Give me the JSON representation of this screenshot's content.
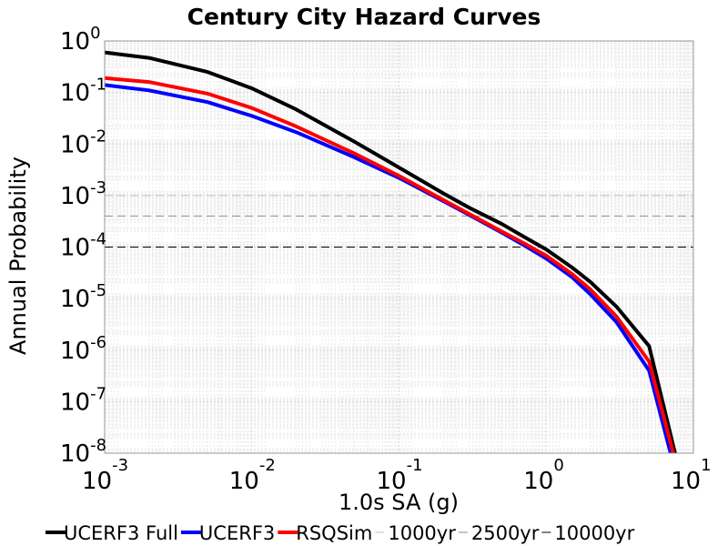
{
  "chart_data": {
    "type": "line",
    "title": "Century City Hazard Curves",
    "xlabel": "1.0s SA (g)",
    "ylabel": "Annual Probability",
    "x_scale": "log",
    "y_scale": "log",
    "xlim": [
      0.001,
      10
    ],
    "ylim": [
      1e-08,
      1
    ],
    "grid": true,
    "legend_position": "bottom",
    "x_ticks": [
      {
        "base": "10",
        "exp": "-3"
      },
      {
        "base": "10",
        "exp": "-2"
      },
      {
        "base": "10",
        "exp": "-1"
      },
      {
        "base": "10",
        "exp": "0"
      },
      {
        "base": "10",
        "exp": "1"
      }
    ],
    "y_ticks": [
      {
        "base": "10",
        "exp": "0"
      },
      {
        "base": "10",
        "exp": "-1"
      },
      {
        "base": "10",
        "exp": "-2"
      },
      {
        "base": "10",
        "exp": "-3"
      },
      {
        "base": "10",
        "exp": "-4"
      },
      {
        "base": "10",
        "exp": "-5"
      },
      {
        "base": "10",
        "exp": "-6"
      },
      {
        "base": "10",
        "exp": "-7"
      },
      {
        "base": "10",
        "exp": "-8"
      }
    ],
    "series": [
      {
        "name": "UCERF3 Full",
        "color": "#000000",
        "style": "solid",
        "x": [
          0.001,
          0.002,
          0.005,
          0.01,
          0.02,
          0.05,
          0.1,
          0.2,
          0.3,
          0.5,
          0.7,
          1.0,
          1.5,
          2.0,
          3.0,
          5.0,
          7.5
        ],
        "y": [
          0.6,
          0.47,
          0.25,
          0.12,
          0.047,
          0.011,
          0.0035,
          0.0011,
          0.00058,
          0.00028,
          0.00016,
          9e-05,
          4e-05,
          2.1e-05,
          7e-06,
          1.2e-06,
          1e-08
        ]
      },
      {
        "name": "UCERF3",
        "color": "#0000ff",
        "style": "solid",
        "x": [
          0.001,
          0.002,
          0.005,
          0.01,
          0.02,
          0.05,
          0.1,
          0.2,
          0.3,
          0.5,
          0.7,
          1.0,
          1.5,
          2.0,
          3.0,
          5.0,
          7.0
        ],
        "y": [
          0.14,
          0.11,
          0.065,
          0.035,
          0.017,
          0.0055,
          0.0022,
          0.00078,
          0.00042,
          0.00019,
          0.00011,
          6e-05,
          2.6e-05,
          1.2e-05,
          3.5e-06,
          4e-07,
          1e-08
        ]
      },
      {
        "name": "RSQSim",
        "color": "#ff0000",
        "style": "solid",
        "x": [
          0.001,
          0.002,
          0.005,
          0.01,
          0.02,
          0.05,
          0.1,
          0.2,
          0.3,
          0.5,
          0.7,
          1.0,
          1.5,
          2.0,
          3.0,
          5.0,
          7.3
        ],
        "y": [
          0.19,
          0.16,
          0.095,
          0.05,
          0.022,
          0.0065,
          0.0024,
          0.00082,
          0.00044,
          0.0002,
          0.00012,
          6.8e-05,
          3e-05,
          1.5e-05,
          4.5e-06,
          6e-07,
          1e-08
        ]
      },
      {
        "name": "1000yr",
        "color": "#bfbfbf",
        "style": "dashed",
        "y_const": 0.001
      },
      {
        "name": "2500yr",
        "color": "#8c8c8c",
        "style": "dashed",
        "y_const": 0.0004
      },
      {
        "name": "10000yr",
        "color": "#000000",
        "style": "dashed",
        "y_const": 0.0001
      }
    ]
  }
}
